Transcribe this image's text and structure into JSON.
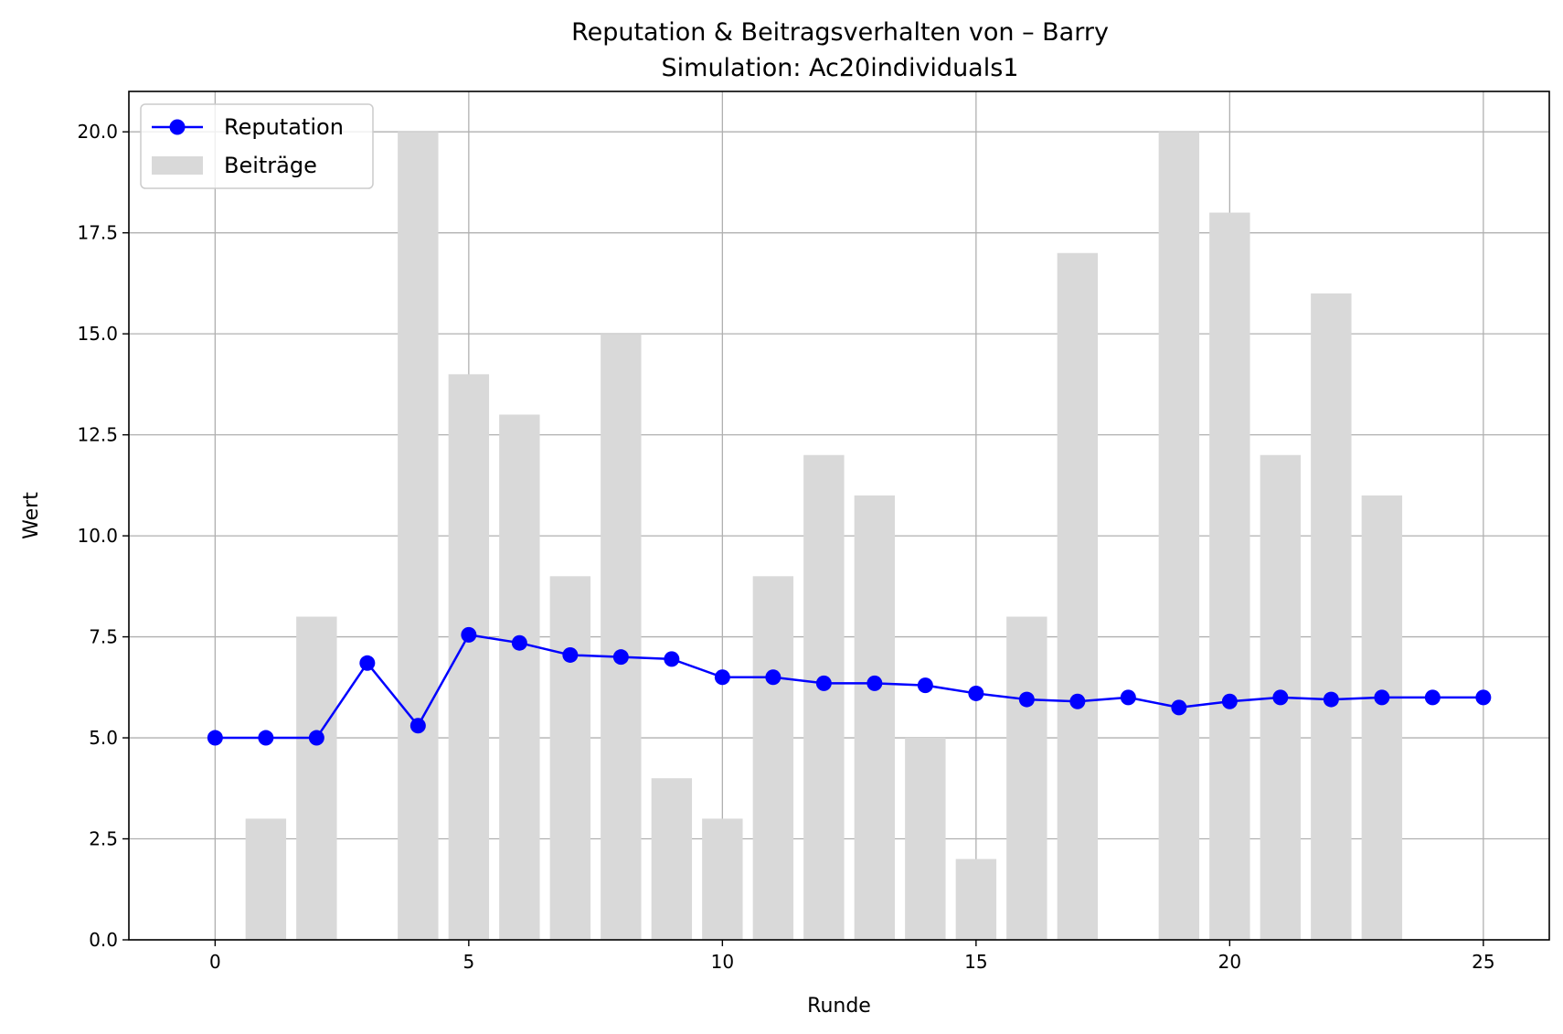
{
  "chart_data": {
    "type": "bar+line",
    "title": "Reputation & Beitragsverhalten von – Barry",
    "subtitle": "Simulation: Ac20individuals1",
    "xlabel": "Runde",
    "ylabel": "Wert",
    "xlim": [
      -1.7,
      26.3
    ],
    "ylim": [
      0,
      21
    ],
    "xticks": [
      0,
      5,
      10,
      15,
      20,
      25
    ],
    "xtick_labels": [
      "0",
      "5",
      "10",
      "15",
      "20",
      "25"
    ],
    "yticks": [
      0,
      2.5,
      5,
      7.5,
      10,
      12.5,
      15,
      17.5,
      20
    ],
    "ytick_labels": [
      "0.0",
      "2.5",
      "5.0",
      "7.5",
      "10.0",
      "12.5",
      "15.0",
      "17.5",
      "20.0"
    ],
    "grid": true,
    "legend_position": "top-left",
    "series": [
      {
        "name": "Reputation",
        "kind": "line",
        "color": "#0000ff",
        "marker": "circle",
        "x": [
          0,
          1,
          2,
          3,
          4,
          5,
          6,
          7,
          8,
          9,
          10,
          11,
          12,
          13,
          14,
          15,
          16,
          17,
          18,
          19,
          20,
          21,
          22,
          23,
          24,
          25
        ],
        "values": [
          5.0,
          5.0,
          5.0,
          6.85,
          5.3,
          7.55,
          7.35,
          7.05,
          7.0,
          6.95,
          6.5,
          6.5,
          6.35,
          6.35,
          6.3,
          6.1,
          5.95,
          5.9,
          6.0,
          5.75,
          5.9,
          6.0,
          5.95,
          6.0,
          6.0,
          6.0
        ]
      },
      {
        "name": "Beiträge",
        "kind": "bar",
        "color": "#d9d9d9",
        "x": [
          0,
          1,
          2,
          3,
          4,
          5,
          6,
          7,
          8,
          9,
          10,
          11,
          12,
          13,
          14,
          15,
          16,
          17,
          18,
          19,
          20,
          21,
          22,
          23,
          24,
          25
        ],
        "values": [
          0,
          3,
          8,
          0,
          20,
          14,
          13,
          9,
          15,
          4,
          3,
          9,
          12,
          11,
          5,
          2,
          8,
          17,
          0,
          20,
          18,
          12,
          16,
          11,
          0,
          0
        ]
      }
    ]
  }
}
